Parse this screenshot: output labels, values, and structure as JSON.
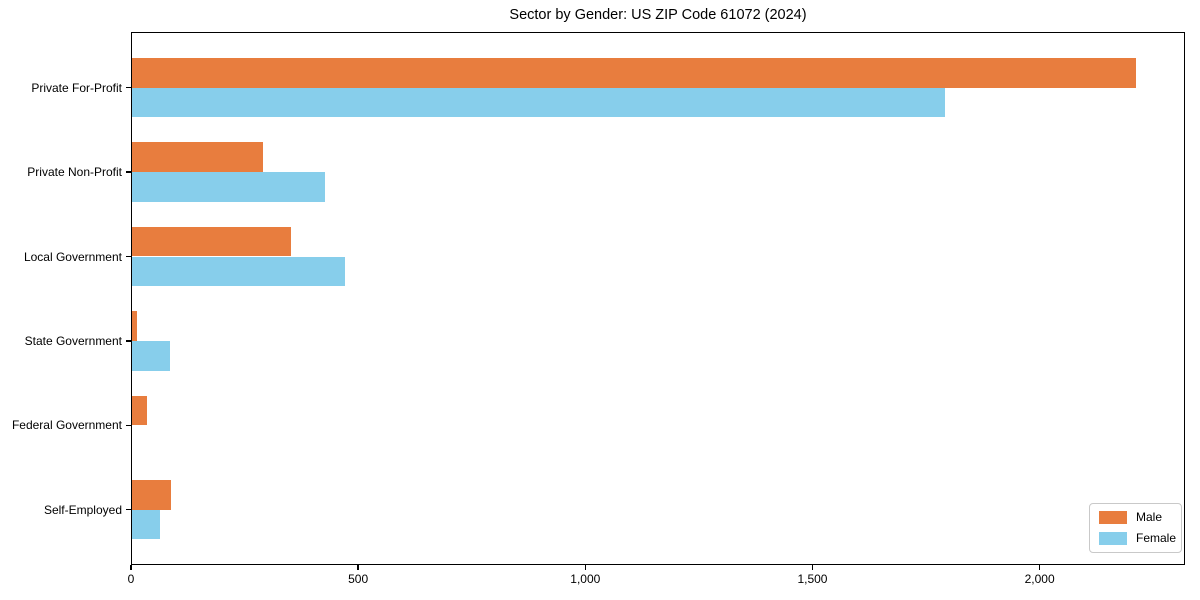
{
  "chart_data": {
    "type": "bar",
    "orientation": "horizontal",
    "title": "Sector by Gender: US ZIP Code 61072 (2024)",
    "categories": [
      "Private For-Profit",
      "Private Non-Profit",
      "Local Government",
      "State Government",
      "Federal Government",
      "Self-Employed"
    ],
    "series": [
      {
        "name": "Male",
        "color": "#e87d3e",
        "values": [
          2210,
          290,
          350,
          13,
          33,
          87
        ]
      },
      {
        "name": "Female",
        "color": "#87ceeb",
        "values": [
          1790,
          425,
          470,
          84,
          0,
          63
        ]
      }
    ],
    "xlabel": "",
    "ylabel": "",
    "xticks": [
      0,
      500,
      1000,
      1500,
      2000
    ],
    "xtick_labels": [
      "0",
      "500",
      "1,000",
      "1,500",
      "2,000"
    ],
    "xlim": [
      0,
      2320
    ],
    "grid": false,
    "legend": {
      "position": "lower right",
      "labels": [
        "Male",
        "Female"
      ]
    }
  }
}
